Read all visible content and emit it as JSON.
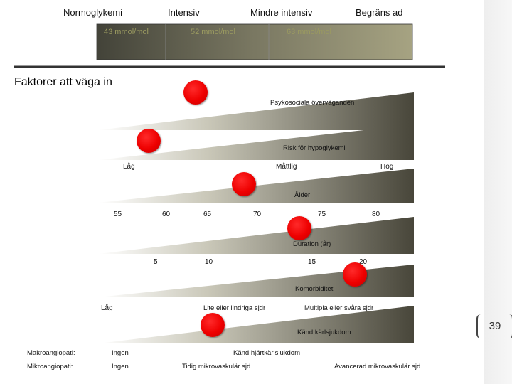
{
  "header": {
    "normoglykemi": "Normoglykemi",
    "intensiv": "Intensiv",
    "mindre_intensiv": "Mindre intensiv",
    "begransad": "Begräns ad"
  },
  "band": {
    "v1": "43 mmol/mol",
    "v2": "52 mmol/mol",
    "v3": "63 mmol/mol"
  },
  "section_title": "Faktorer att väga in",
  "factors": {
    "psyko": "Psykosociala överväganden",
    "hypo": "Risk för hypoglykemi",
    "hypo_low": "Låg",
    "hypo_mid": "Måttlig",
    "hypo_high": "Hög",
    "alder": "Ålder",
    "age_ticks": [
      "55",
      "60",
      "65",
      "70",
      "75",
      "80"
    ],
    "duration": "Duration (år)",
    "dur_ticks": [
      "5",
      "10",
      "15",
      "20"
    ],
    "komorb": "Komorbiditet",
    "komorb_low": "Låg",
    "komorb_mid": "Lite eller lindriga sjdr",
    "komorb_high": "Multipla eller svåra sjdr",
    "karl": "Känd kärlsjukdom"
  },
  "footer": {
    "makro_label": "Makroangiopati:",
    "makro_none": "Ingen",
    "makro_known": "Känd hjärtkärlsjukdom",
    "mikro_label": "Mikroangiopati:",
    "mikro_none": "Ingen",
    "mikro_early": "Tidig mikrovaskulär sjd",
    "mikro_adv": "Avancerad mikrovaskulär sjd"
  },
  "page_number": "39",
  "colors": {
    "dot": "#ee0000",
    "wedge_light": "#ffffff",
    "wedge_dark": "#4a4836",
    "band_light": "#4a4a42",
    "band_dark": "#a3a080"
  }
}
